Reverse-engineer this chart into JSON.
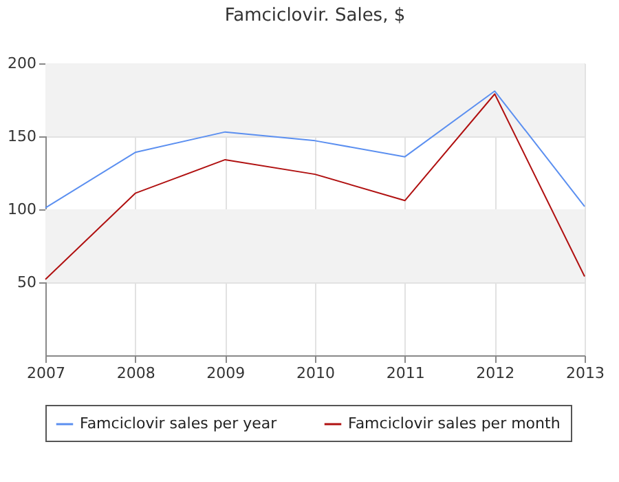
{
  "chart_data": {
    "type": "line",
    "title": "Famciclovir. Sales, $",
    "x": [
      2007,
      2008,
      2009,
      2010,
      2011,
      2012,
      2013
    ],
    "series": [
      {
        "name": "Famciclovir sales per year",
        "color": "#5b8ff0",
        "values": [
          101,
          139,
          153,
          147,
          136,
          181,
          102
        ]
      },
      {
        "name": "Famciclovir sales per month",
        "color": "#b01010",
        "values": [
          52,
          111,
          134,
          124,
          106,
          179,
          54
        ]
      }
    ],
    "xlim": [
      2007,
      2013
    ],
    "xticks": [
      2007,
      2008,
      2009,
      2010,
      2011,
      2012,
      2013
    ],
    "ylim": [
      0,
      200
    ],
    "yticks": [
      50,
      100,
      150,
      200
    ],
    "bands": [
      {
        "axis": "y",
        "from": 50,
        "to": 100,
        "color": "#f2f2f2"
      },
      {
        "axis": "y",
        "from": 150,
        "to": 200,
        "color": "#f2f2f2"
      }
    ],
    "grid": true,
    "legend": "bottom",
    "marker": "none",
    "line_style": "solid"
  }
}
